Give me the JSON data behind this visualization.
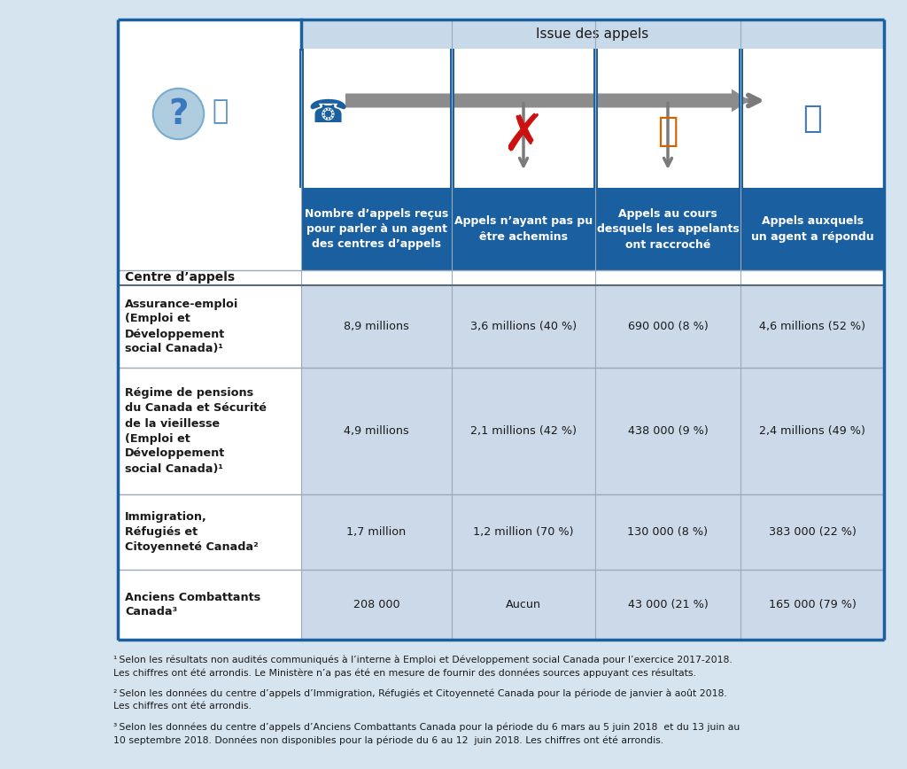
{
  "title_header": "Issue des appels",
  "col_header_texts": [
    "Nombre d’appels reçus\npour parler à un agent\ndes centres d’appels",
    "Appels n’ayant pas pu\nêtre achemins",
    "Appels au cours\ndesquels les appelants\nont raccroché",
    "Appels auxquels\nun agent a répondu"
  ],
  "row_header_label": "Centre d’appels",
  "rows": [
    {
      "name": "Assurance-emploi\n(Emploi et\nDéveloppement\nsocial Canada)¹",
      "values": [
        "8,9 millions",
        "3,6 millions (40 %)",
        "690 000 (8 %)",
        "4,6 millions (52 %)"
      ]
    },
    {
      "name": "Régime de pensions\ndu Canada et Sécurité\nde la vieillesse\n(Emploi et\nDéveloppement\nsocial Canada)¹",
      "values": [
        "4,9 millions",
        "2,1 millions (42 %)",
        "438 000 (9 %)",
        "2,4 millions (49 %)"
      ]
    },
    {
      "name": "Immigration,\nRéfugiés et\nCitoyenneté Canada²",
      "values": [
        "1,7 million",
        "1,2 million (70 %)",
        "130 000 (8 %)",
        "383 000 (22 %)"
      ]
    },
    {
      "name": "Anciens Combattants\nCanada³",
      "values": [
        "208 000",
        "Aucun",
        "43 000 (21 %)",
        "165 000 (79 %)"
      ]
    }
  ],
  "footnotes": [
    "¹ Selon les résultats non audités communiqués à l’interne à Emploi et Développement social Canada pour l’exercice 2017-2018.\nLes chiffres ont été arrondis. Le Ministère n’a pas été en mesure de fournir des données sources appuyant ces résultats.",
    "² Selon les données du centre d’appels d’Immigration, Réfugiés et Citoyenneté Canada pour la période de janvier à août 2018.\nLes chiffres ont été arrondis.",
    "³ Selon les données du centre d’appels d’Anciens Combattants Canada pour la période du 6 mars au 5 juin 2018  et du 13 juin au\n10 septembre 2018. Données non disponibles pour la période du 6 au 12  juin 2018. Les chiffres ont été arrondis."
  ],
  "bg_outer": "#d6e4f0",
  "bg_white": "#ffffff",
  "blue_dark": "#1a5fa0",
  "blue_mid": "#c8d9ea",
  "blue_header_bg": "#1a5fa0",
  "blue_stripe": "#ccd9e8",
  "text_dark": "#1a1a1a",
  "text_white": "#ffffff",
  "sep_color": "#9caab8",
  "border_color": "#1a5fa0"
}
